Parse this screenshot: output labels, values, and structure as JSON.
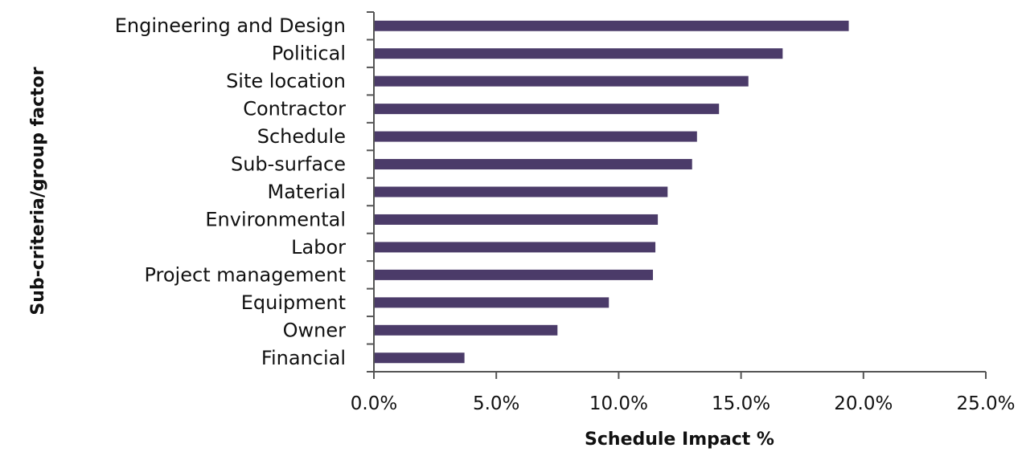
{
  "chart_data": {
    "type": "bar",
    "orientation": "horizontal",
    "title": "",
    "xlabel": "Schedule Impact %",
    "ylabel": "Sub-criteria/group factor",
    "xlim": [
      0,
      25
    ],
    "x_ticks": [
      "0.0%",
      "5.0%",
      "10.0%",
      "15.0%",
      "20.0%",
      "25.0%"
    ],
    "categories": [
      "Engineering and Design",
      "Political",
      "Site location",
      "Contractor",
      "Schedule",
      "Sub-surface",
      "Material",
      "Environmental",
      "Labor",
      "Project management",
      "Equipment",
      "Owner",
      "Financial"
    ],
    "values": [
      19.4,
      16.7,
      15.3,
      14.1,
      13.2,
      13.0,
      12.0,
      11.6,
      11.5,
      11.4,
      9.6,
      7.5,
      3.7
    ],
    "unit": "%",
    "bar_color": "#4b3b69",
    "grid": false,
    "legend": "none"
  }
}
